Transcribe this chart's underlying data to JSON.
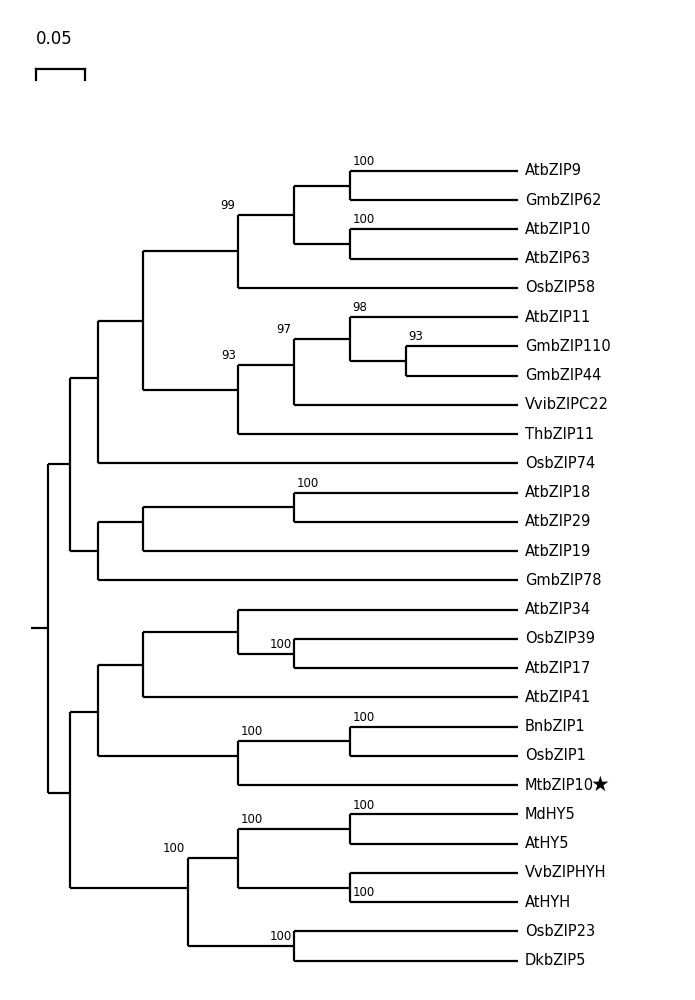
{
  "taxa_order": [
    "AtbZIP9",
    "GmbZIP62",
    "AtbZIP10",
    "AtbZIP63",
    "OsbZIP58",
    "AtbZIP11",
    "GmbZIP110",
    "GmbZIP44",
    "VvibZIPC22",
    "ThbZIP11",
    "OsbZIP74",
    "AtbZIP18",
    "AtbZIP29",
    "AtbZIP19",
    "GmbZIP78",
    "AtbZIP34",
    "OsbZIP39",
    "AtbZIP17",
    "AtbZIP41",
    "BnbZIP1",
    "OsbZIP1",
    "MtbZIP10",
    "MdHY5",
    "AtHY5",
    "VvbZIPHYH",
    "AtHYH",
    "OsbZIP23",
    "DkbZIP5"
  ],
  "star_taxon": "MtbZIP10",
  "background_color": "#ffffff",
  "line_color": "#000000",
  "scale_bar_label": "0.05",
  "lw": 1.6,
  "leaf_fontsize": 10.5,
  "bootstrap_fontsize": 8.5,
  "scale_fontsize": 12
}
